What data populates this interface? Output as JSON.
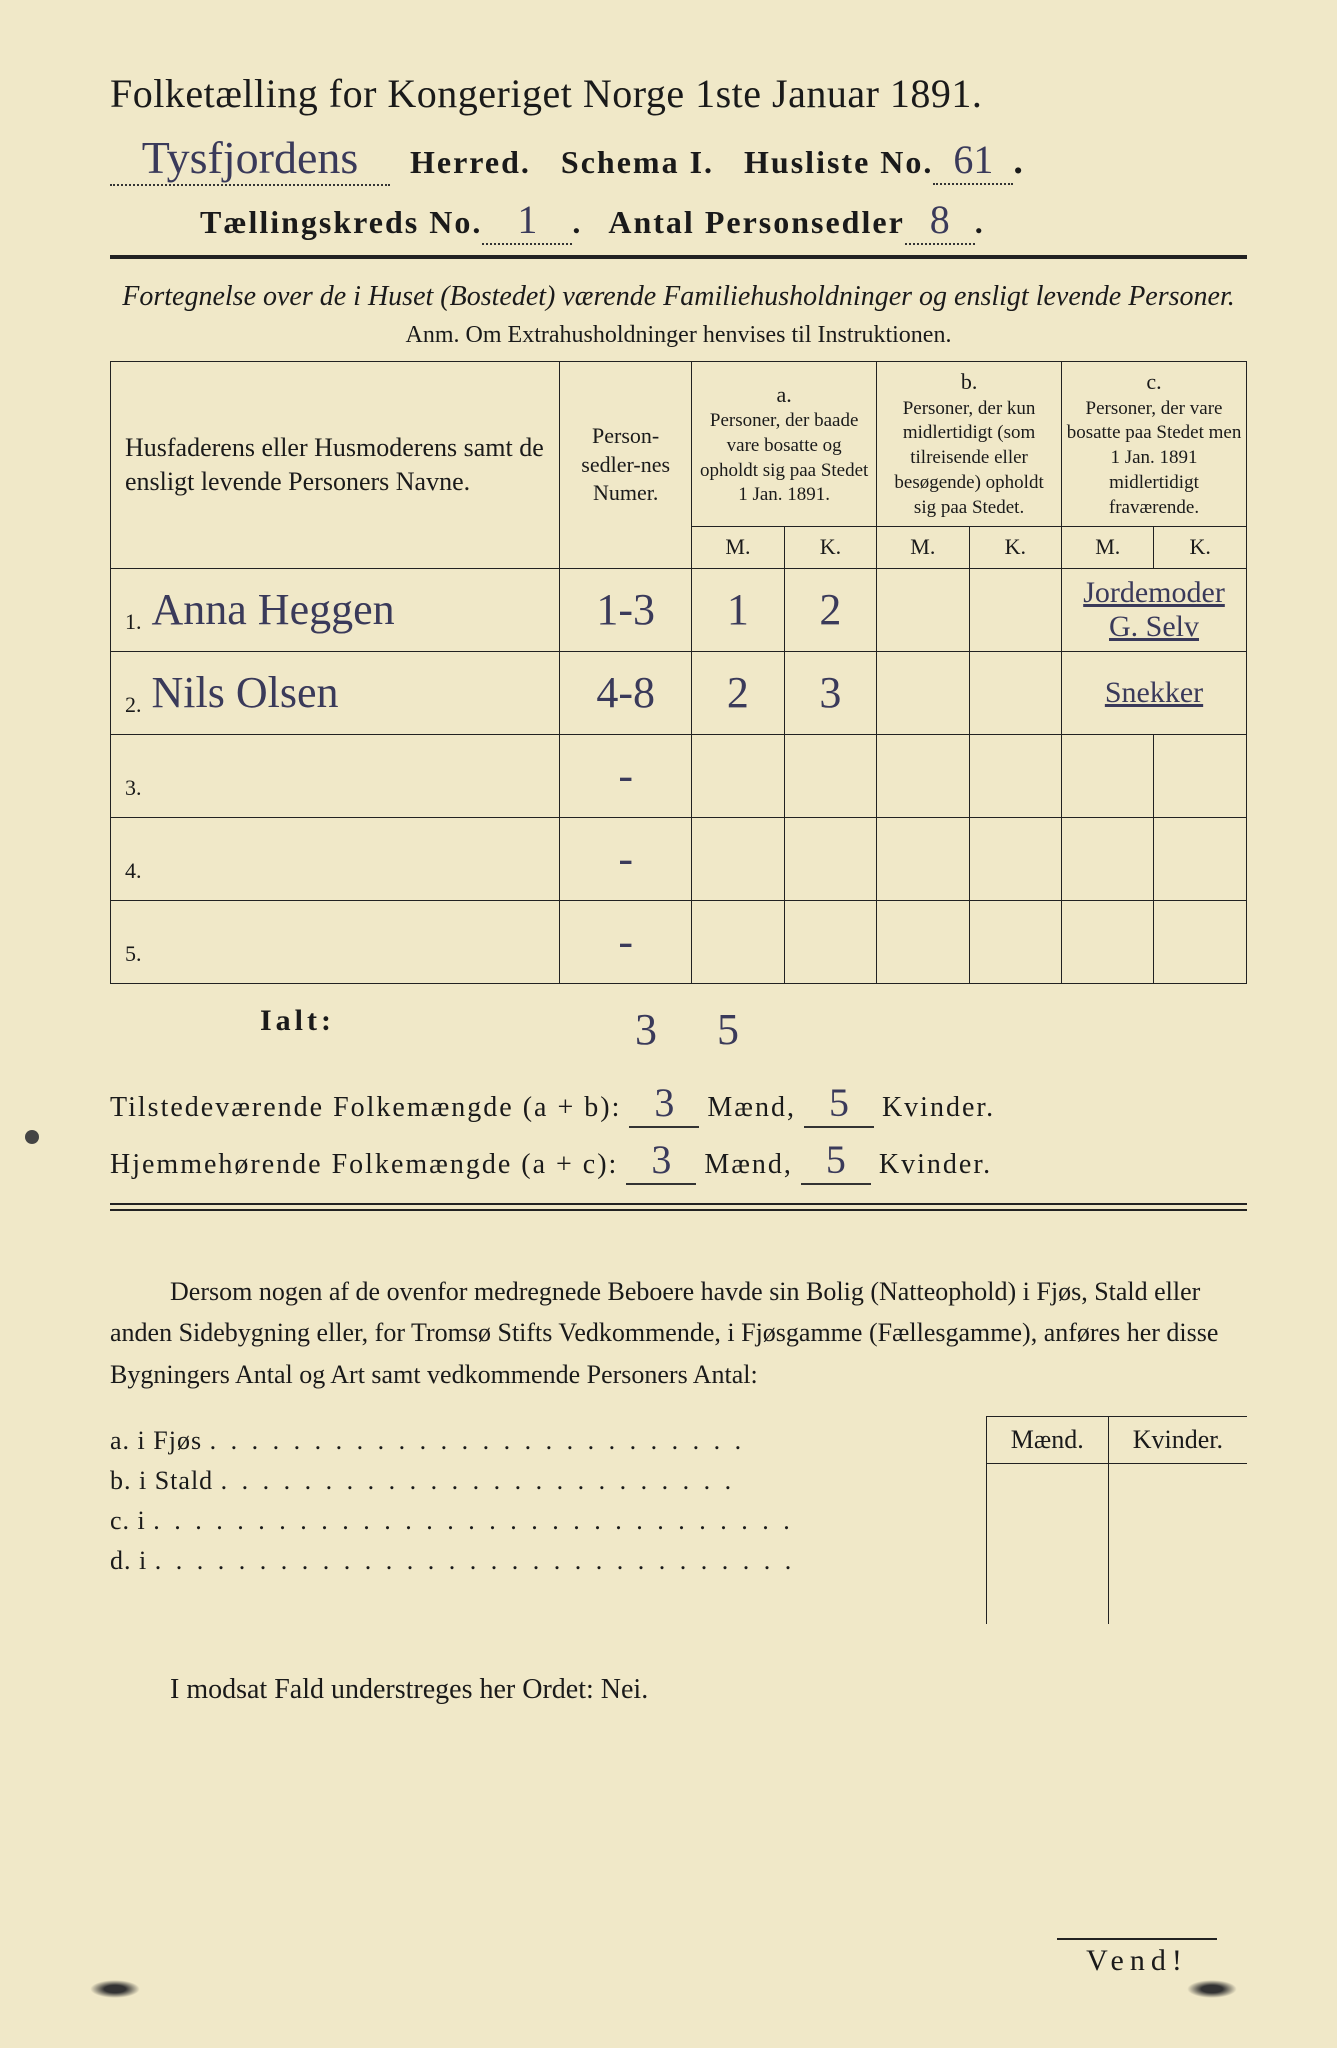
{
  "colors": {
    "paper": "#f0e8c8",
    "ink": "#1a1a1a",
    "handwriting": "#3a3a5a"
  },
  "header": {
    "title": "Folketælling for Kongeriget Norge 1ste Januar 1891.",
    "herred_hw": "Tysfjordens",
    "herred_label": "Herred.",
    "schema_label": "Schema I.",
    "husliste_label": "Husliste No.",
    "husliste_hw": "61",
    "kreds_label": "Tællingskreds No.",
    "kreds_hw": "1",
    "antal_label": "Antal Personsedler",
    "antal_hw": "8"
  },
  "subtitle": {
    "line": "Fortegnelse over de i Huset (Bostedet) værende Familiehusholdninger og ensligt levende Personer.",
    "anm": "Anm. Om Extrahusholdninger henvises til Instruktionen."
  },
  "table": {
    "head": {
      "name": "Husfaderens eller Husmoderens samt de ensligt levende Personers Navne.",
      "num": "Person-sedler-nes Numer.",
      "a_label": "a.",
      "a_text": "Personer, der baade vare bosatte og opholdt sig paa Stedet 1 Jan. 1891.",
      "b_label": "b.",
      "b_text": "Personer, der kun midlertidigt (som tilreisende eller besøgende) opholdt sig paa Stedet.",
      "c_label": "c.",
      "c_text": "Personer, der vare bosatte paa Stedet men 1 Jan. 1891 midlertidigt fraværende.",
      "m": "M.",
      "k": "K."
    },
    "rows": [
      {
        "n": "1.",
        "name": "Anna Heggen",
        "num": "1-3",
        "am": "1",
        "ak": "2",
        "bm": "",
        "bk": "",
        "cm": "",
        "ck": "",
        "note": "Jordemoder G. Selv"
      },
      {
        "n": "2.",
        "name": "Nils Olsen",
        "num": "4-8",
        "am": "2",
        "ak": "3",
        "bm": "",
        "bk": "",
        "cm": "",
        "ck": "",
        "note": "Snekker"
      },
      {
        "n": "3.",
        "name": "",
        "num": "-",
        "am": "",
        "ak": "",
        "bm": "",
        "bk": "",
        "cm": "",
        "ck": "",
        "note": ""
      },
      {
        "n": "4.",
        "name": "",
        "num": "-",
        "am": "",
        "ak": "",
        "bm": "",
        "bk": "",
        "cm": "",
        "ck": "",
        "note": ""
      },
      {
        "n": "5.",
        "name": "",
        "num": "-",
        "am": "",
        "ak": "",
        "bm": "",
        "bk": "",
        "cm": "",
        "ck": "",
        "note": ""
      }
    ],
    "ialt_label": "Ialt:",
    "ialt_m": "3",
    "ialt_k": "5"
  },
  "summary": {
    "line1_label": "Tilstedeværende Folkemængde (a + b):",
    "line1_m": "3",
    "line1_k": "5",
    "line2_label": "Hjemmehørende Folkemængde (a + c):",
    "line2_m": "3",
    "line2_k": "5",
    "maend": "Mænd,",
    "kvinder": "Kvinder."
  },
  "paragraph": "Dersom nogen af de ovenfor medregnede Beboere havde sin Bolig (Natteophold) i Fjøs, Stald eller anden Sidebygning eller, for Tromsø Stifts Vedkommende, i Fjøsgamme (Fællesgamme), anføres her disse Bygningers Antal og Art samt vedkommende Personers Antal:",
  "fjos": {
    "head_m": "Mænd.",
    "head_k": "Kvinder.",
    "a": "a.  i      Fjøs",
    "b": "b.  i      Stald",
    "c": "c.  i",
    "d": "d.  i"
  },
  "bottom": "I modsat Fald understreges her Ordet: Nei.",
  "vend": "Vend!"
}
